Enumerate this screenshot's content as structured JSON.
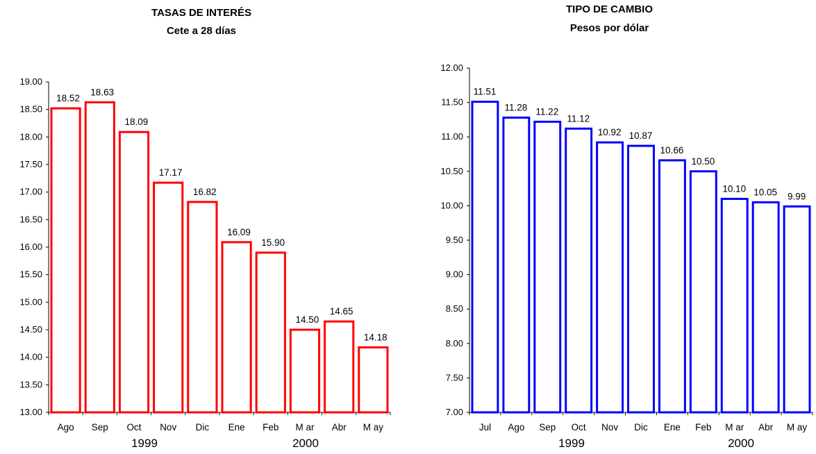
{
  "chart_data": [
    {
      "type": "bar",
      "title": "TASAS DE INTERÉS",
      "subtitle": "Cete a 28 días",
      "categories": [
        "Ago",
        "Sep",
        "Oct",
        "Nov",
        "Dic",
        "Ene",
        "Feb",
        "M ar",
        "Abr",
        "M ay"
      ],
      "values": [
        18.52,
        18.63,
        18.09,
        17.17,
        16.82,
        16.09,
        15.9,
        14.5,
        14.65,
        14.18
      ],
      "value_labels": [
        "18.52",
        "18.63",
        "18.09",
        "17.17",
        "16.82",
        "16.09",
        "15.90",
        "14.50",
        "14.65",
        "14.18"
      ],
      "ylim": [
        13,
        19
      ],
      "yticks": [
        "13.00",
        "13.50",
        "14.00",
        "14.50",
        "15.00",
        "15.50",
        "16.00",
        "16.50",
        "17.00",
        "17.50",
        "18.00",
        "18.50",
        "19.00"
      ],
      "year_labels": [
        "1999",
        "2000"
      ],
      "color": "#ff0000",
      "grid": false,
      "legend": "none"
    },
    {
      "type": "bar",
      "title": "TIPO DE CAMBIO",
      "subtitle": "Pesos por dólar",
      "categories": [
        "Jul",
        "Ago",
        "Sep",
        "Oct",
        "Nov",
        "Dic",
        "Ene",
        "Feb",
        "M ar",
        "Abr",
        "M ay"
      ],
      "values": [
        11.51,
        11.28,
        11.22,
        11.12,
        10.92,
        10.87,
        10.66,
        10.5,
        10.1,
        10.05,
        9.99
      ],
      "value_labels": [
        "11.51",
        "11.28",
        "11.22",
        "11.12",
        "10.92",
        "10.87",
        "10.66",
        "10.50",
        "10.10",
        "10.05",
        "9.99"
      ],
      "ylim": [
        7,
        12
      ],
      "yticks": [
        "7.00",
        "7.50",
        "8.00",
        "8.50",
        "9.00",
        "9.50",
        "10.00",
        "10.50",
        "11.00",
        "11.50",
        "12.00"
      ],
      "year_labels": [
        "1999",
        "2000"
      ],
      "color": "#0000ff",
      "grid": false,
      "legend": "none"
    }
  ]
}
